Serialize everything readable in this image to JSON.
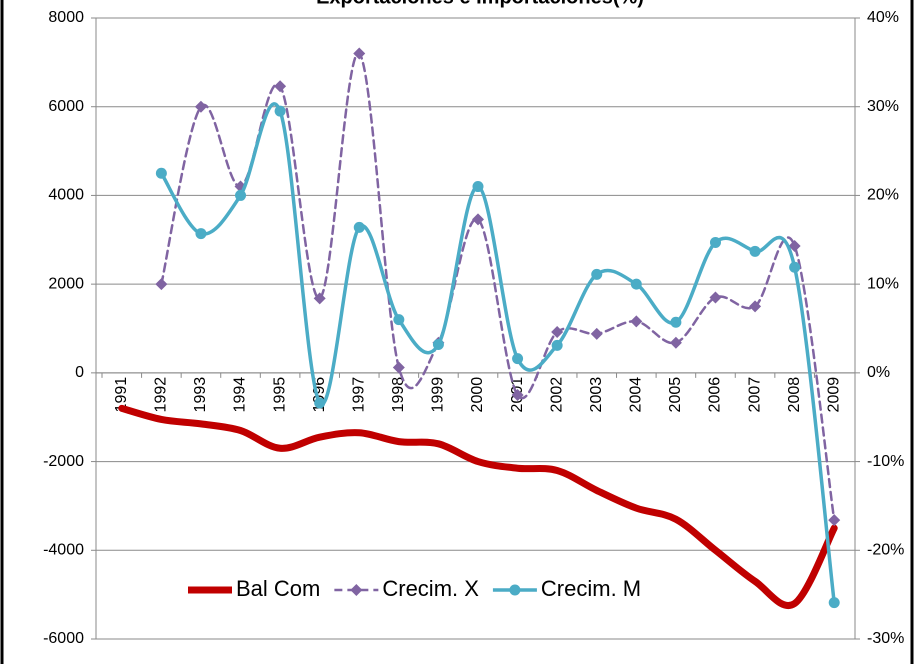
{
  "chart_data": {
    "type": "line",
    "title": "Exportaciones e Importaciones(%)",
    "categories": [
      "1991",
      "1992",
      "1993",
      "1994",
      "1995",
      "1996",
      "1997",
      "1998",
      "1999",
      "2000",
      "2001",
      "2002",
      "2003",
      "2004",
      "2005",
      "2006",
      "2007",
      "2008",
      "2009"
    ],
    "series": [
      {
        "name": "Bal Com",
        "color": "#c00000",
        "axis": "y",
        "values": [
          -800,
          -1050,
          -1150,
          -1300,
          -1700,
          -1450,
          -1350,
          -1550,
          -1600,
          -2000,
          -2150,
          -2200,
          -2650,
          -3050,
          -3300,
          -4000,
          -4700,
          -5200,
          -3500
        ]
      },
      {
        "name": "Crecim. X",
        "color": "#8064a2",
        "axis": "y2",
        "values": [
          null,
          10,
          30,
          21,
          32.3,
          8.4,
          36,
          0.6,
          3.4,
          17.3,
          -2.5,
          4.6,
          4.4,
          5.8,
          3.4,
          8.5,
          7.5,
          14.3,
          -16.6
        ]
      },
      {
        "name": "Crecim. M",
        "color": "#4bacc6",
        "axis": "y2",
        "values": [
          null,
          22.5,
          15.7,
          20,
          29.5,
          -3.4,
          16.4,
          6,
          3.2,
          21,
          1.6,
          3.1,
          11.1,
          10,
          5.7,
          14.7,
          13.7,
          11.9,
          -25.9
        ]
      }
    ],
    "ylim": [
      -6000,
      8000
    ],
    "yticks": [
      -6000,
      -4000,
      -2000,
      0,
      2000,
      4000,
      6000,
      8000
    ],
    "y2lim": [
      -30,
      40
    ],
    "y2ticks": [
      {
        "value": -30,
        "label": "-30%"
      },
      {
        "value": -20,
        "label": "-20%"
      },
      {
        "value": -10,
        "label": "-10%"
      },
      {
        "value": 0,
        "label": "0%"
      },
      {
        "value": 10,
        "label": "10%"
      },
      {
        "value": 20,
        "label": "20%"
      },
      {
        "value": 30,
        "label": "30%"
      },
      {
        "value": 40,
        "label": "40%"
      }
    ],
    "grid": true,
    "legend": "bottom"
  }
}
